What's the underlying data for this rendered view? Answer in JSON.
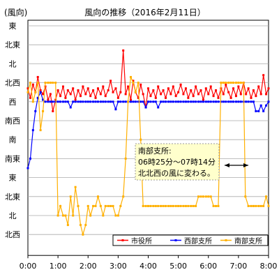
{
  "chart_data": {
    "type": "line",
    "title": "風向の推移（2016年2月11日）",
    "ylabel": "(風向)",
    "y_categories": [
      "東",
      "北東",
      "北",
      "北西",
      "西",
      "南西",
      "南",
      "南東",
      "東",
      "北東",
      "北",
      "北西"
    ],
    "x_ticks": [
      "0:00",
      "1:00",
      "2:00",
      "3:00",
      "4:00",
      "5:00",
      "6:00",
      "7:00",
      "8:00"
    ],
    "xlim_hours": [
      0,
      8
    ],
    "grid": true,
    "legend_position": "bottom-right",
    "annotation": {
      "lines": [
        "南部支所:",
        "06時25分～07時14分",
        "北北西の風に変わる。"
      ],
      "arrow": "double",
      "background": "#ffffcc"
    },
    "series": [
      {
        "name": "市役所",
        "color": "#ff0000",
        "points": [
          [
            0.0,
            3.3
          ],
          [
            0.08,
            3.8
          ],
          [
            0.17,
            3.1
          ],
          [
            0.25,
            3.5
          ],
          [
            0.33,
            2.7
          ],
          [
            0.42,
            3.4
          ],
          [
            0.5,
            3.6
          ],
          [
            0.58,
            3.2
          ],
          [
            0.67,
            3.9
          ],
          [
            0.75,
            3.6
          ],
          [
            0.83,
            4.5
          ],
          [
            0.92,
            3.9
          ],
          [
            1.0,
            3.4
          ],
          [
            1.08,
            3.7
          ],
          [
            1.17,
            3.2
          ],
          [
            1.25,
            3.8
          ],
          [
            1.33,
            3.4
          ],
          [
            1.42,
            3.6
          ],
          [
            1.5,
            3.3
          ],
          [
            1.58,
            3.9
          ],
          [
            1.67,
            3.4
          ],
          [
            1.75,
            3.7
          ],
          [
            1.83,
            3.2
          ],
          [
            1.92,
            3.6
          ],
          [
            2.0,
            3.3
          ],
          [
            2.08,
            3.7
          ],
          [
            2.17,
            3.4
          ],
          [
            2.25,
            3.8
          ],
          [
            2.33,
            3.3
          ],
          [
            2.42,
            3.6
          ],
          [
            2.5,
            3.2
          ],
          [
            2.58,
            3.7
          ],
          [
            2.67,
            3.4
          ],
          [
            2.75,
            2.9
          ],
          [
            2.83,
            3.5
          ],
          [
            2.92,
            3.3
          ],
          [
            3.0,
            3.8
          ],
          [
            3.08,
            3.5
          ],
          [
            3.17,
            1.3
          ],
          [
            3.25,
            3.6
          ],
          [
            3.33,
            3.2
          ],
          [
            3.42,
            3.9
          ],
          [
            3.5,
            2.9
          ],
          [
            3.58,
            3.5
          ],
          [
            3.67,
            3.8
          ],
          [
            3.75,
            3.1
          ],
          [
            3.83,
            3.6
          ],
          [
            3.92,
            4.3
          ],
          [
            4.0,
            3.3
          ],
          [
            4.08,
            3.7
          ],
          [
            4.17,
            3.4
          ],
          [
            4.25,
            3.8
          ],
          [
            4.33,
            3.2
          ],
          [
            4.42,
            3.6
          ],
          [
            4.5,
            3.4
          ],
          [
            4.58,
            3.8
          ],
          [
            4.67,
            3.3
          ],
          [
            4.75,
            3.6
          ],
          [
            4.83,
            3.2
          ],
          [
            4.92,
            3.7
          ],
          [
            5.0,
            3.5
          ],
          [
            5.08,
            3.1
          ],
          [
            5.17,
            3.6
          ],
          [
            5.25,
            3.3
          ],
          [
            5.33,
            3.8
          ],
          [
            5.42,
            3.4
          ],
          [
            5.5,
            3.7
          ],
          [
            5.58,
            3.2
          ],
          [
            5.67,
            3.6
          ],
          [
            5.75,
            3.4
          ],
          [
            5.83,
            3.9
          ],
          [
            5.92,
            3.3
          ],
          [
            6.0,
            3.6
          ],
          [
            6.08,
            3.2
          ],
          [
            6.17,
            3.7
          ],
          [
            6.25,
            3.4
          ],
          [
            6.33,
            3.8
          ],
          [
            6.42,
            3.3
          ],
          [
            6.5,
            3.6
          ],
          [
            6.58,
            3.1
          ],
          [
            6.67,
            3.5
          ],
          [
            6.75,
            3.8
          ],
          [
            6.83,
            3.3
          ],
          [
            6.92,
            3.7
          ],
          [
            7.0,
            3.2
          ],
          [
            7.08,
            3.6
          ],
          [
            7.17,
            3.0
          ],
          [
            7.25,
            3.6
          ],
          [
            7.33,
            3.3
          ],
          [
            7.42,
            3.8
          ],
          [
            7.5,
            3.4
          ],
          [
            7.58,
            3.7
          ],
          [
            7.67,
            3.2
          ],
          [
            7.75,
            3.6
          ],
          [
            7.83,
            2.6
          ],
          [
            7.92,
            3.6
          ],
          [
            8.0,
            3.3
          ]
        ]
      },
      {
        "name": "西部支所",
        "color": "#0000ff",
        "points": [
          [
            0.0,
            7.5
          ],
          [
            0.08,
            7.0
          ],
          [
            0.17,
            5.5
          ],
          [
            0.25,
            4.5
          ],
          [
            0.33,
            3.8
          ],
          [
            0.42,
            3.5
          ],
          [
            0.5,
            3.9
          ],
          [
            0.58,
            4.0
          ],
          [
            0.67,
            4.0
          ],
          [
            0.75,
            4.0
          ],
          [
            0.83,
            4.0
          ],
          [
            0.92,
            4.0
          ],
          [
            1.0,
            4.0
          ],
          [
            1.08,
            4.0
          ],
          [
            1.17,
            4.0
          ],
          [
            1.25,
            4.0
          ],
          [
            1.33,
            4.0
          ],
          [
            1.42,
            4.3
          ],
          [
            1.5,
            4.0
          ],
          [
            1.58,
            4.0
          ],
          [
            1.67,
            4.0
          ],
          [
            1.75,
            4.0
          ],
          [
            1.83,
            4.0
          ],
          [
            1.92,
            4.0
          ],
          [
            2.0,
            4.0
          ],
          [
            2.08,
            4.0
          ],
          [
            2.17,
            4.0
          ],
          [
            2.25,
            4.0
          ],
          [
            2.33,
            4.0
          ],
          [
            2.42,
            4.0
          ],
          [
            2.5,
            4.0
          ],
          [
            2.58,
            4.0
          ],
          [
            2.67,
            4.0
          ],
          [
            2.75,
            4.0
          ],
          [
            2.83,
            4.0
          ],
          [
            2.92,
            4.4
          ],
          [
            3.0,
            4.0
          ],
          [
            3.08,
            4.0
          ],
          [
            3.17,
            4.0
          ],
          [
            3.25,
            4.0
          ],
          [
            3.33,
            4.0
          ],
          [
            3.42,
            4.0
          ],
          [
            3.5,
            4.0
          ],
          [
            3.58,
            4.0
          ],
          [
            3.67,
            4.0
          ],
          [
            3.75,
            4.0
          ],
          [
            3.83,
            4.0
          ],
          [
            3.92,
            4.3
          ],
          [
            4.0,
            4.0
          ],
          [
            4.08,
            4.0
          ],
          [
            4.17,
            4.0
          ],
          [
            4.25,
            4.0
          ],
          [
            4.33,
            4.3
          ],
          [
            4.42,
            4.0
          ],
          [
            4.5,
            4.0
          ],
          [
            4.58,
            4.0
          ],
          [
            4.67,
            4.0
          ],
          [
            4.75,
            4.0
          ],
          [
            4.83,
            4.0
          ],
          [
            4.92,
            4.0
          ],
          [
            5.0,
            4.0
          ],
          [
            5.08,
            4.0
          ],
          [
            5.17,
            4.0
          ],
          [
            5.25,
            4.0
          ],
          [
            5.33,
            4.0
          ],
          [
            5.42,
            4.0
          ],
          [
            5.5,
            4.0
          ],
          [
            5.58,
            4.0
          ],
          [
            5.67,
            4.0
          ],
          [
            5.75,
            4.0
          ],
          [
            5.83,
            4.0
          ],
          [
            5.92,
            4.0
          ],
          [
            6.0,
            4.0
          ],
          [
            6.08,
            4.0
          ],
          [
            6.17,
            4.0
          ],
          [
            6.25,
            4.0
          ],
          [
            6.33,
            4.0
          ],
          [
            6.42,
            4.0
          ],
          [
            6.5,
            4.0
          ],
          [
            6.58,
            4.0
          ],
          [
            6.67,
            4.0
          ],
          [
            6.75,
            4.0
          ],
          [
            6.83,
            4.0
          ],
          [
            6.92,
            4.0
          ],
          [
            7.0,
            4.0
          ],
          [
            7.08,
            4.0
          ],
          [
            7.17,
            4.0
          ],
          [
            7.25,
            4.0
          ],
          [
            7.33,
            4.0
          ],
          [
            7.42,
            4.0
          ],
          [
            7.5,
            4.0
          ],
          [
            7.58,
            4.5
          ],
          [
            7.67,
            4.5
          ],
          [
            7.75,
            4.2
          ],
          [
            7.83,
            4.5
          ],
          [
            7.92,
            4.2
          ],
          [
            8.0,
            4.0
          ]
        ]
      },
      {
        "name": "南部支所",
        "color": "#ffb000",
        "points": [
          [
            0.0,
            3.5
          ],
          [
            0.08,
            3.0
          ],
          [
            0.17,
            4.0
          ],
          [
            0.25,
            3.5
          ],
          [
            0.33,
            3.0
          ],
          [
            0.42,
            5.5
          ],
          [
            0.5,
            4.5
          ],
          [
            0.58,
            3.0
          ],
          [
            0.67,
            3.0
          ],
          [
            0.75,
            3.0
          ],
          [
            0.83,
            3.0
          ],
          [
            0.92,
            3.0
          ],
          [
            1.0,
            10.0
          ],
          [
            1.08,
            9.5
          ],
          [
            1.17,
            10.0
          ],
          [
            1.25,
            10.0
          ],
          [
            1.33,
            10.5
          ],
          [
            1.42,
            9.0
          ],
          [
            1.5,
            10.0
          ],
          [
            1.58,
            8.5
          ],
          [
            1.67,
            9.5
          ],
          [
            1.75,
            10.5
          ],
          [
            1.83,
            11.0
          ],
          [
            1.92,
            10.5
          ],
          [
            2.0,
            9.5
          ],
          [
            2.08,
            10.0
          ],
          [
            2.17,
            9.5
          ],
          [
            2.25,
            9.5
          ],
          [
            2.33,
            9.0
          ],
          [
            2.42,
            9.5
          ],
          [
            2.5,
            10.0
          ],
          [
            2.58,
            9.5
          ],
          [
            2.67,
            9.5
          ],
          [
            2.75,
            9.5
          ],
          [
            2.83,
            9.5
          ],
          [
            2.92,
            10.0
          ],
          [
            3.0,
            10.0
          ],
          [
            3.08,
            9.5
          ],
          [
            3.17,
            9.0
          ],
          [
            3.25,
            7.0
          ],
          [
            3.33,
            4.0
          ],
          [
            3.42,
            2.7
          ],
          [
            3.5,
            3.0
          ],
          [
            3.58,
            3.5
          ],
          [
            3.67,
            3.0
          ],
          [
            3.75,
            6.0
          ],
          [
            3.83,
            9.5
          ],
          [
            3.92,
            9.5
          ],
          [
            4.0,
            9.5
          ],
          [
            4.08,
            9.5
          ],
          [
            4.17,
            9.5
          ],
          [
            4.25,
            9.5
          ],
          [
            4.33,
            9.5
          ],
          [
            4.42,
            9.5
          ],
          [
            4.5,
            9.5
          ],
          [
            4.58,
            9.5
          ],
          [
            4.67,
            9.5
          ],
          [
            4.75,
            9.5
          ],
          [
            4.83,
            9.5
          ],
          [
            4.92,
            9.5
          ],
          [
            5.0,
            9.5
          ],
          [
            5.08,
            9.5
          ],
          [
            5.17,
            9.5
          ],
          [
            5.25,
            9.5
          ],
          [
            5.33,
            9.5
          ],
          [
            5.42,
            9.5
          ],
          [
            5.5,
            9.5
          ],
          [
            5.58,
            9.5
          ],
          [
            5.67,
            9.0
          ],
          [
            5.75,
            9.0
          ],
          [
            5.83,
            9.0
          ],
          [
            5.92,
            9.0
          ],
          [
            6.0,
            9.0
          ],
          [
            6.08,
            9.0
          ],
          [
            6.17,
            9.5
          ],
          [
            6.25,
            9.5
          ],
          [
            6.33,
            9.5
          ],
          [
            6.42,
            3.0
          ],
          [
            6.5,
            3.0
          ],
          [
            6.58,
            3.0
          ],
          [
            6.67,
            3.0
          ],
          [
            6.75,
            3.0
          ],
          [
            6.83,
            3.0
          ],
          [
            6.92,
            3.0
          ],
          [
            7.0,
            3.0
          ],
          [
            7.08,
            3.0
          ],
          [
            7.17,
            3.0
          ],
          [
            7.23,
            9.0
          ],
          [
            7.33,
            9.5
          ],
          [
            7.42,
            9.5
          ],
          [
            7.5,
            9.5
          ],
          [
            7.58,
            9.5
          ],
          [
            7.67,
            9.5
          ],
          [
            7.75,
            9.5
          ],
          [
            7.83,
            9.5
          ],
          [
            7.92,
            9.0
          ],
          [
            8.0,
            9.5
          ]
        ]
      }
    ]
  }
}
